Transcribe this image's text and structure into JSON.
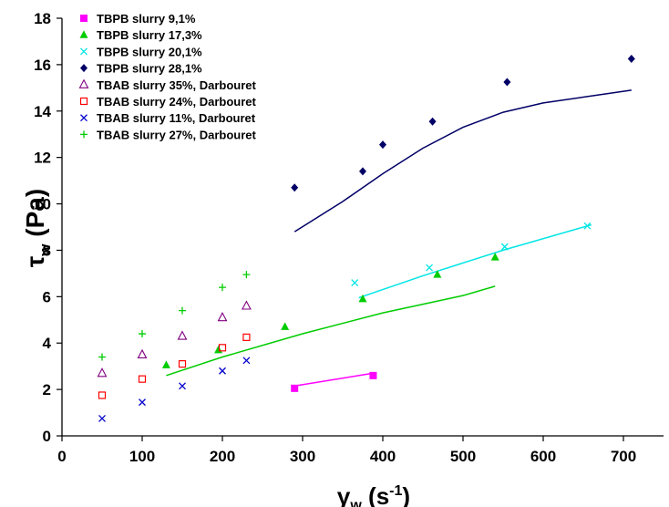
{
  "chart_data": {
    "type": "scatter",
    "xlabel": "γw (s-1)",
    "ylabel": "τw (Pa)",
    "xlim": [
      0,
      750
    ],
    "ylim": [
      0,
      18
    ],
    "x_ticks": [
      "0",
      "100",
      "200",
      "300",
      "400",
      "500",
      "600",
      "700"
    ],
    "y_ticks": [
      "0",
      "2",
      "4",
      "6",
      "8",
      "10",
      "12",
      "14",
      "16",
      "18"
    ],
    "grid": false,
    "legend_position": "top-left",
    "series": [
      {
        "name": "TBPB slurry 9,1%",
        "marker": "square-filled",
        "color": "#FF00FF",
        "points": [
          [
            290,
            2.05
          ],
          [
            388,
            2.6
          ]
        ]
      },
      {
        "name": "TBPB slurry 17,3%",
        "marker": "triangle-filled",
        "color": "#00CC00",
        "points": [
          [
            130,
            3.05
          ],
          [
            195,
            3.7
          ],
          [
            278,
            4.7
          ],
          [
            375,
            5.9
          ],
          [
            468,
            6.95
          ],
          [
            540,
            7.7
          ]
        ]
      },
      {
        "name": "TBPB slurry 20,1%",
        "marker": "x",
        "color": "#00E5E5",
        "points": [
          [
            365,
            6.6
          ],
          [
            458,
            7.25
          ],
          [
            552,
            8.15
          ],
          [
            655,
            9.05
          ]
        ]
      },
      {
        "name": "TBPB slurry 28,1%",
        "marker": "diamond-filled",
        "color": "#000066",
        "points": [
          [
            290,
            10.7
          ],
          [
            375,
            11.4
          ],
          [
            400,
            12.55
          ],
          [
            462,
            13.55
          ],
          [
            555,
            15.25
          ],
          [
            710,
            16.25
          ]
        ]
      },
      {
        "name": "TBAB slurry 35%, Darbouret",
        "marker": "triangle-open",
        "color": "#800080",
        "points": [
          [
            50,
            2.7
          ],
          [
            100,
            3.5
          ],
          [
            150,
            4.3
          ],
          [
            200,
            5.1
          ],
          [
            230,
            5.6
          ]
        ]
      },
      {
        "name": "TBAB slurry 24%, Darbouret",
        "marker": "square-open",
        "color": "#FF0000",
        "points": [
          [
            50,
            1.75
          ],
          [
            100,
            2.45
          ],
          [
            150,
            3.1
          ],
          [
            200,
            3.8
          ],
          [
            230,
            4.25
          ]
        ]
      },
      {
        "name": "TBAB slurry 11%, Darbouret",
        "marker": "x",
        "color": "#0000CC",
        "points": [
          [
            50,
            0.75
          ],
          [
            100,
            1.45
          ],
          [
            150,
            2.15
          ],
          [
            200,
            2.8
          ],
          [
            230,
            3.25
          ]
        ]
      },
      {
        "name": "TBAB slurry 27%, Darbouret",
        "marker": "plus",
        "color": "#00CC00",
        "points": [
          [
            50,
            3.4
          ],
          [
            100,
            4.4
          ],
          [
            150,
            5.4
          ],
          [
            200,
            6.4
          ],
          [
            230,
            6.95
          ]
        ]
      }
    ],
    "fit_lines": [
      {
        "color": "#FF00FF",
        "points": [
          [
            290,
            2.15
          ],
          [
            388,
            2.7
          ]
        ]
      },
      {
        "color": "#00CC00",
        "points": [
          [
            130,
            2.6
          ],
          [
            200,
            3.4
          ],
          [
            300,
            4.4
          ],
          [
            400,
            5.3
          ],
          [
            500,
            6.05
          ],
          [
            540,
            6.45
          ]
        ]
      },
      {
        "color": "#00E5E5",
        "points": [
          [
            370,
            5.95
          ],
          [
            450,
            6.9
          ],
          [
            550,
            8.0
          ],
          [
            660,
            9.1
          ]
        ]
      },
      {
        "color": "#000066",
        "points": [
          [
            290,
            8.8
          ],
          [
            350,
            10.1
          ],
          [
            400,
            11.3
          ],
          [
            450,
            12.4
          ],
          [
            500,
            13.3
          ],
          [
            550,
            13.95
          ],
          [
            600,
            14.35
          ],
          [
            650,
            14.6
          ],
          [
            710,
            14.9
          ]
        ]
      }
    ]
  }
}
